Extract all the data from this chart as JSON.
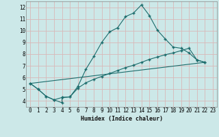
{
  "xlabel": "Humidex (Indice chaleur)",
  "background_color": "#cce8e8",
  "grid_color": "#c0d8d8",
  "line_color": "#1a6b6b",
  "xlim": [
    -0.5,
    23.5
  ],
  "ylim": [
    3.5,
    12.5
  ],
  "xtick_labels": [
    "0",
    "1",
    "2",
    "3",
    "4",
    "5",
    "6",
    "7",
    "8",
    "9",
    "10",
    "11",
    "12",
    "13",
    "14",
    "15",
    "16",
    "17",
    "18",
    "19",
    "20",
    "21",
    "22",
    "23"
  ],
  "xtick_vals": [
    0,
    1,
    2,
    3,
    4,
    5,
    6,
    7,
    8,
    9,
    10,
    11,
    12,
    13,
    14,
    15,
    16,
    17,
    18,
    19,
    20,
    21,
    22,
    23
  ],
  "ytick_vals": [
    4,
    5,
    6,
    7,
    8,
    9,
    10,
    11,
    12
  ],
  "line1_x": [
    0,
    1,
    2,
    3,
    4,
    4,
    5,
    6,
    7,
    8,
    9,
    10,
    11,
    12,
    13,
    14,
    15,
    16,
    17,
    18,
    19,
    20,
    21,
    22
  ],
  "line1_y": [
    5.5,
    5.0,
    4.4,
    4.1,
    3.85,
    4.3,
    4.35,
    5.25,
    6.7,
    7.8,
    9.0,
    9.9,
    10.25,
    11.2,
    11.5,
    12.2,
    11.3,
    10.05,
    9.3,
    8.6,
    8.5,
    8.1,
    7.5,
    7.3
  ],
  "line2_x": [
    0,
    1,
    2,
    3,
    4,
    5,
    6,
    7,
    8,
    9,
    10,
    11,
    12,
    13,
    14,
    15,
    16,
    17,
    18,
    19,
    20,
    21,
    22
  ],
  "line2_y": [
    5.5,
    5.0,
    4.4,
    4.1,
    4.3,
    4.35,
    5.1,
    5.55,
    5.85,
    6.1,
    6.35,
    6.6,
    6.85,
    7.05,
    7.3,
    7.55,
    7.75,
    7.95,
    8.1,
    8.3,
    8.5,
    7.5,
    7.3
  ],
  "line3_x": [
    0,
    22
  ],
  "line3_y": [
    5.5,
    7.3
  ]
}
